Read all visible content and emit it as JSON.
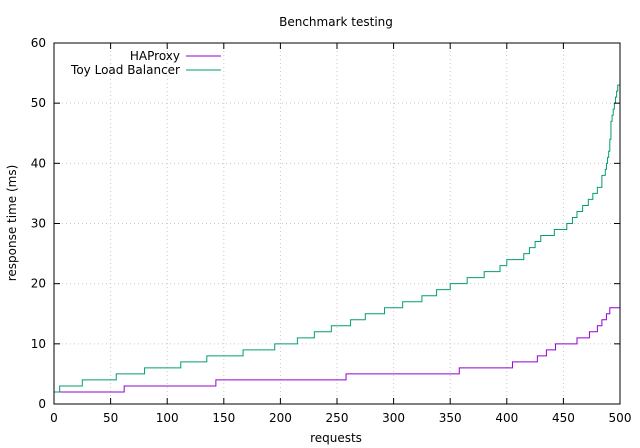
{
  "chart_data": {
    "type": "line",
    "title": "Benchmark testing",
    "xlabel": "requests",
    "ylabel": "response time (ms)",
    "xlim": [
      0,
      500
    ],
    "ylim": [
      0,
      60
    ],
    "xticks": [
      "0",
      "50",
      "100",
      "150",
      "200",
      "250",
      "300",
      "350",
      "400",
      "450",
      "500"
    ],
    "yticks": [
      "0",
      "10",
      "20",
      "30",
      "40",
      "50",
      "60"
    ],
    "grid": true,
    "legend_position": "top-left",
    "series": [
      {
        "name": "HAProxy",
        "color": "#9400d3",
        "step": true,
        "x": [
          0,
          62,
          143,
          258,
          358,
          405,
          427,
          435,
          443,
          462,
          473,
          480,
          484,
          488,
          491,
          494,
          497,
          500
        ],
        "y": [
          2,
          3,
          4,
          5,
          6,
          7,
          8,
          9,
          10,
          11,
          12,
          13,
          14,
          15,
          16,
          16,
          16,
          16
        ]
      },
      {
        "name": "Toy Load Balancer",
        "color": "#009e73",
        "step": true,
        "x": [
          0,
          5,
          25,
          55,
          80,
          112,
          135,
          167,
          195,
          215,
          230,
          245,
          262,
          275,
          292,
          308,
          325,
          338,
          350,
          365,
          380,
          394,
          400,
          415,
          420,
          425,
          430,
          442,
          453,
          458,
          462,
          467,
          472,
          476,
          480,
          484,
          487,
          488,
          489,
          490,
          491,
          492,
          493,
          494,
          495,
          496,
          497,
          498,
          499,
          500
        ],
        "y": [
          2,
          3,
          4,
          5,
          6,
          7,
          8,
          9,
          10,
          11,
          12,
          13,
          14,
          15,
          16,
          17,
          18,
          19,
          20,
          21,
          22,
          23,
          24,
          25,
          26,
          27,
          28,
          29,
          30,
          31,
          32,
          33,
          34,
          35,
          36,
          38,
          39,
          40,
          41,
          42,
          44,
          47,
          48,
          49,
          50,
          51,
          52,
          53,
          53,
          53
        ]
      }
    ]
  }
}
